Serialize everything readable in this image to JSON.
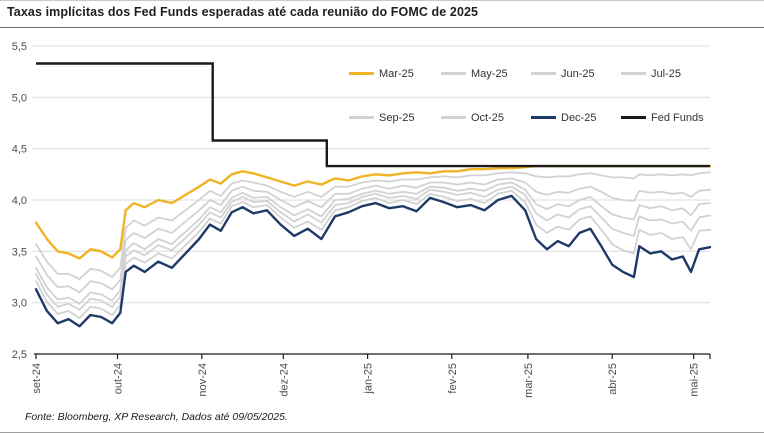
{
  "title": "Taxas implícitas dos Fed Funds esperadas até cada reunião do FOMC de 2025",
  "footer": "Fonte: Bloomberg, XP Research, Dados até 09/05/2025.",
  "colors": {
    "yellow": "#F0B323",
    "navy": "#1F3A68",
    "gray": "#D2D2D2",
    "black": "#1A1A1A",
    "grid": "#DCDCDC",
    "axis_text": "#4D4D4D"
  },
  "legend": {
    "rows": [
      [
        {
          "label": "Mar-25",
          "color": "#F0B323"
        },
        {
          "label": "May-25",
          "color": "#D2D2D2"
        },
        {
          "label": "Jun-25",
          "color": "#D2D2D2"
        },
        {
          "label": "Jul-25",
          "color": "#D2D2D2"
        }
      ],
      [
        {
          "label": "Sep-25",
          "color": "#D2D2D2"
        },
        {
          "label": "Oct-25",
          "color": "#D2D2D2"
        },
        {
          "label": "Dec-25",
          "color": "#1F3A68"
        },
        {
          "label": "Fed Funds",
          "color": "#1A1A1A"
        }
      ]
    ]
  },
  "chart_data": {
    "type": "line",
    "title": "Taxas implícitas dos Fed Funds esperadas até cada reunião do FOMC de 2025",
    "xlabel": "",
    "ylabel": "",
    "ylim": [
      2.5,
      5.5
    ],
    "grid": true,
    "legend_position": "upper-right-inside",
    "yticks": [
      {
        "v": 5.5,
        "label": "5,5"
      },
      {
        "v": 5.0,
        "label": "5,0"
      },
      {
        "v": 4.5,
        "label": "4,5"
      },
      {
        "v": 4.0,
        "label": "4,0"
      },
      {
        "v": 3.5,
        "label": "3,5"
      },
      {
        "v": 3.0,
        "label": "3,0"
      },
      {
        "v": 2.5,
        "label": "2,5"
      }
    ],
    "xticks": [
      {
        "label": "set-24",
        "day": 0
      },
      {
        "label": "out-24",
        "day": 30
      },
      {
        "label": "nov-24",
        "day": 61
      },
      {
        "label": "dez-24",
        "day": 91
      },
      {
        "label": "jan-25",
        "day": 122
      },
      {
        "label": "fev-25",
        "day": 153
      },
      {
        "label": "mar-25",
        "day": 181
      },
      {
        "label": "abr-25",
        "day": 212
      },
      {
        "label": "mai-25",
        "day": 242
      }
    ],
    "x_max": 248,
    "x_days": [
      0,
      4,
      8,
      12,
      16,
      20,
      24,
      28,
      31,
      33,
      36,
      40,
      45,
      50,
      55,
      60,
      64,
      68,
      72,
      76,
      80,
      85,
      90,
      95,
      100,
      105,
      110,
      115,
      120,
      125,
      130,
      135,
      140,
      145,
      150,
      155,
      160,
      165,
      170,
      175,
      180,
      184,
      188,
      192,
      196,
      200,
      204,
      208,
      212,
      216,
      220,
      222,
      226,
      230,
      234,
      238,
      241,
      244,
      248
    ],
    "series": [
      {
        "name": "Mar-25",
        "color": "#F0B323",
        "width": 2.4,
        "values": [
          3.78,
          3.62,
          3.5,
          3.48,
          3.43,
          3.52,
          3.5,
          3.44,
          3.52,
          3.9,
          3.97,
          3.93,
          4.0,
          3.97,
          4.05,
          4.13,
          4.2,
          4.16,
          4.25,
          4.28,
          4.26,
          4.22,
          4.18,
          4.14,
          4.18,
          4.15,
          4.21,
          4.19,
          4.23,
          4.25,
          4.24,
          4.26,
          4.27,
          4.26,
          4.28,
          4.28,
          4.3,
          4.3,
          4.31,
          4.31,
          4.32,
          4.33,
          4.33,
          4.33,
          4.33,
          4.33,
          4.33,
          4.33,
          4.33,
          4.33,
          4.33,
          4.33,
          4.33,
          4.33,
          4.33,
          4.33,
          4.33,
          4.33,
          4.33
        ]
      },
      {
        "name": "May-25",
        "color": "#D2D2D2",
        "width": 1.8,
        "values": [
          3.57,
          3.4,
          3.28,
          3.28,
          3.23,
          3.33,
          3.31,
          3.25,
          3.34,
          3.73,
          3.8,
          3.75,
          3.83,
          3.8,
          3.9,
          4.0,
          4.09,
          4.04,
          4.16,
          4.19,
          4.17,
          4.14,
          4.08,
          4.03,
          4.08,
          4.03,
          4.13,
          4.13,
          4.17,
          4.19,
          4.18,
          4.2,
          4.2,
          4.22,
          4.23,
          4.22,
          4.24,
          4.24,
          4.26,
          4.27,
          4.26,
          4.23,
          4.22,
          4.23,
          4.23,
          4.25,
          4.26,
          4.24,
          4.22,
          4.22,
          4.21,
          4.25,
          4.24,
          4.25,
          4.24,
          4.25,
          4.24,
          4.26,
          4.27
        ]
      },
      {
        "name": "Jun-25",
        "color": "#D2D2D2",
        "width": 1.8,
        "values": [
          3.45,
          3.27,
          3.15,
          3.16,
          3.1,
          3.21,
          3.19,
          3.13,
          3.22,
          3.61,
          3.68,
          3.63,
          3.72,
          3.68,
          3.79,
          3.9,
          4.0,
          3.95,
          4.09,
          4.13,
          4.09,
          4.08,
          4.0,
          3.93,
          3.99,
          3.93,
          4.06,
          4.06,
          4.11,
          4.14,
          4.11,
          4.14,
          4.12,
          4.17,
          4.17,
          4.15,
          4.17,
          4.15,
          4.2,
          4.21,
          4.17,
          4.08,
          4.05,
          4.08,
          4.07,
          4.11,
          4.13,
          4.08,
          4.02,
          4.0,
          3.99,
          4.09,
          4.07,
          4.08,
          4.06,
          4.07,
          4.03,
          4.09,
          4.1
        ]
      },
      {
        "name": "Jul-25",
        "color": "#D2D2D2",
        "width": 1.8,
        "values": [
          3.34,
          3.15,
          3.03,
          3.05,
          2.99,
          3.1,
          3.08,
          3.02,
          3.12,
          3.51,
          3.58,
          3.52,
          3.62,
          3.57,
          3.69,
          3.81,
          3.93,
          3.88,
          4.02,
          4.07,
          4.02,
          4.03,
          3.93,
          3.85,
          3.91,
          3.84,
          4.0,
          4.01,
          4.06,
          4.09,
          4.06,
          4.08,
          4.06,
          4.13,
          4.12,
          4.09,
          4.11,
          4.09,
          4.15,
          4.17,
          4.1,
          3.96,
          3.91,
          3.96,
          3.94,
          4.0,
          4.03,
          3.94,
          3.86,
          3.83,
          3.81,
          3.95,
          3.92,
          3.94,
          3.9,
          3.92,
          3.85,
          3.96,
          3.97
        ]
      },
      {
        "name": "Sep-25",
        "color": "#D2D2D2",
        "width": 1.8,
        "values": [
          3.28,
          3.08,
          2.96,
          2.99,
          2.93,
          3.04,
          3.02,
          2.96,
          3.06,
          3.45,
          3.51,
          3.46,
          3.56,
          3.51,
          3.63,
          3.76,
          3.88,
          3.83,
          3.98,
          4.03,
          3.98,
          3.99,
          3.88,
          3.79,
          3.86,
          3.78,
          3.95,
          3.97,
          4.03,
          4.06,
          4.02,
          4.04,
          4.01,
          4.1,
          4.08,
          4.05,
          4.07,
          4.03,
          4.1,
          4.13,
          4.05,
          3.87,
          3.8,
          3.86,
          3.83,
          3.91,
          3.94,
          3.83,
          3.72,
          3.68,
          3.65,
          3.84,
          3.8,
          3.81,
          3.77,
          3.79,
          3.7,
          3.83,
          3.85
        ]
      },
      {
        "name": "Oct-25",
        "color": "#D2D2D2",
        "width": 1.8,
        "values": [
          3.21,
          3.01,
          2.89,
          2.92,
          2.85,
          2.96,
          2.94,
          2.88,
          2.98,
          3.38,
          3.44,
          3.39,
          3.48,
          3.43,
          3.56,
          3.69,
          3.82,
          3.77,
          3.94,
          3.98,
          3.93,
          3.95,
          3.83,
          3.73,
          3.79,
          3.71,
          3.9,
          3.93,
          3.99,
          4.02,
          3.97,
          4.0,
          3.96,
          4.06,
          4.03,
          3.99,
          4.01,
          3.97,
          4.06,
          4.09,
          3.98,
          3.76,
          3.68,
          3.74,
          3.71,
          3.81,
          3.84,
          3.71,
          3.57,
          3.51,
          3.48,
          3.71,
          3.66,
          3.68,
          3.62,
          3.64,
          3.52,
          3.7,
          3.71
        ]
      },
      {
        "name": "Dec-25",
        "color": "#1F3A68",
        "width": 2.4,
        "values": [
          3.13,
          2.92,
          2.8,
          2.84,
          2.77,
          2.88,
          2.86,
          2.8,
          2.9,
          3.3,
          3.36,
          3.3,
          3.4,
          3.34,
          3.48,
          3.62,
          3.76,
          3.7,
          3.88,
          3.93,
          3.87,
          3.9,
          3.76,
          3.65,
          3.72,
          3.62,
          3.84,
          3.88,
          3.94,
          3.97,
          3.92,
          3.94,
          3.89,
          4.02,
          3.98,
          3.93,
          3.95,
          3.9,
          4.0,
          4.04,
          3.9,
          3.62,
          3.52,
          3.6,
          3.55,
          3.68,
          3.72,
          3.55,
          3.37,
          3.3,
          3.25,
          3.55,
          3.48,
          3.5,
          3.42,
          3.45,
          3.3,
          3.52,
          3.54
        ]
      }
    ],
    "fed_funds": {
      "name": "Fed Funds",
      "color": "#1A1A1A",
      "width": 2.4,
      "x": [
        0,
        65,
        65,
        107,
        107,
        248
      ],
      "values": [
        5.33,
        5.33,
        4.58,
        4.58,
        4.33,
        4.33
      ]
    }
  }
}
